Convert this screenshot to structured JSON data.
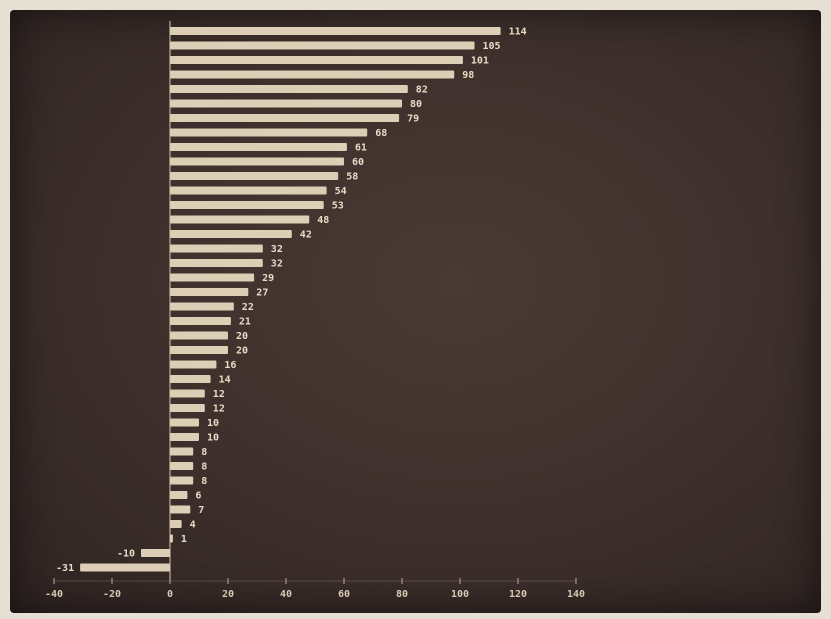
{
  "colors": {
    "bar": "#dccfb6",
    "axis": "#bfae96",
    "background": "#3d2f2b"
  },
  "chart_data": {
    "type": "bar",
    "orientation": "horizontal",
    "title": "",
    "xlabel": "",
    "ylabel": "",
    "values": [
      114,
      105,
      101,
      98,
      82,
      80,
      79,
      68,
      61,
      60,
      58,
      54,
      53,
      48,
      42,
      32,
      32,
      29,
      27,
      22,
      21,
      20,
      20,
      16,
      14,
      12,
      12,
      10,
      10,
      8,
      8,
      8,
      6,
      7,
      4,
      1,
      -10,
      -31
    ],
    "xlim": [
      -40,
      140
    ],
    "xticks": [
      -40,
      -20,
      0,
      20,
      40,
      60,
      80,
      100,
      120,
      140
    ],
    "grid": false
  }
}
